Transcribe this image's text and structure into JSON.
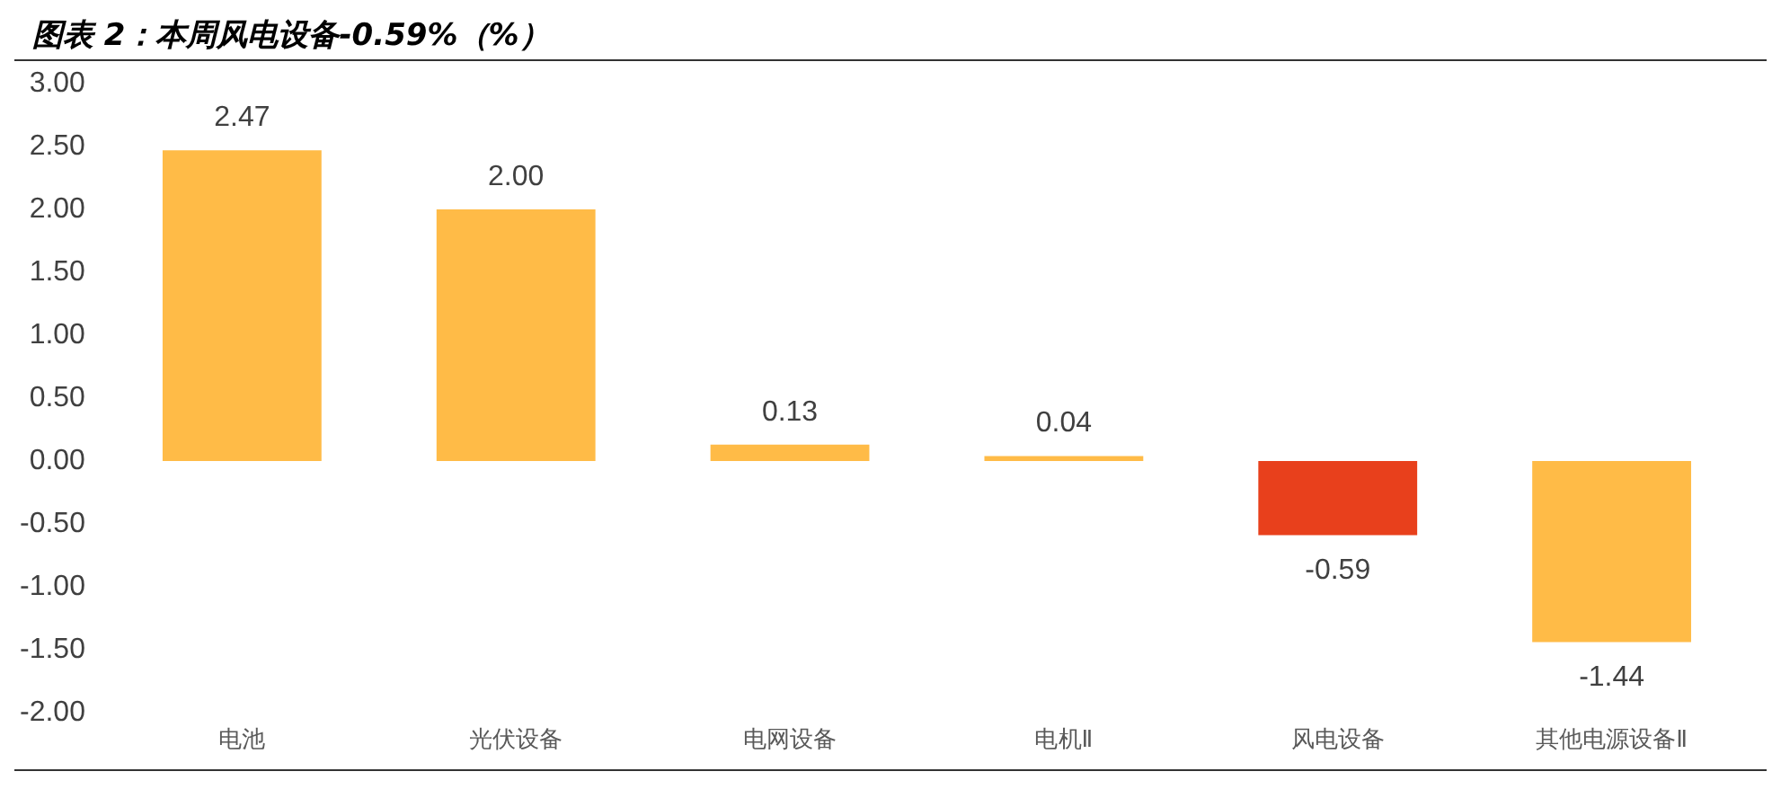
{
  "chart_data": {
    "type": "bar",
    "title": "图表 2：本周风电设备-0.59%（%）",
    "categories": [
      "电池",
      "光伏设备",
      "电网设备",
      "电机Ⅱ",
      "风电设备",
      "其他电源设备Ⅱ"
    ],
    "values": [
      2.47,
      2.0,
      0.13,
      0.04,
      -0.59,
      -1.44
    ],
    "value_labels": [
      "2.47",
      "2.00",
      "0.13",
      "0.04",
      "-0.59",
      "-1.44"
    ],
    "colors": [
      "#ffbb47",
      "#ffbb47",
      "#ffbb47",
      "#ffbb47",
      "#e8401c",
      "#ffbb47"
    ],
    "ylim": [
      -2,
      3
    ],
    "yticks": [
      {
        "value": -2,
        "label": "-2.00"
      },
      {
        "value": -1.5,
        "label": "-1.50"
      },
      {
        "value": -1,
        "label": "-1.00"
      },
      {
        "value": -0.5,
        "label": "-0.50"
      },
      {
        "value": 0,
        "label": "0.00"
      },
      {
        "value": 0.5,
        "label": "0.50"
      },
      {
        "value": 1,
        "label": "1.00"
      },
      {
        "value": 1.5,
        "label": "1.50"
      },
      {
        "value": 2,
        "label": "2.00"
      },
      {
        "value": 2.5,
        "label": "2.50"
      },
      {
        "value": 3,
        "label": "3.00"
      }
    ],
    "grid": false,
    "legend": false
  }
}
